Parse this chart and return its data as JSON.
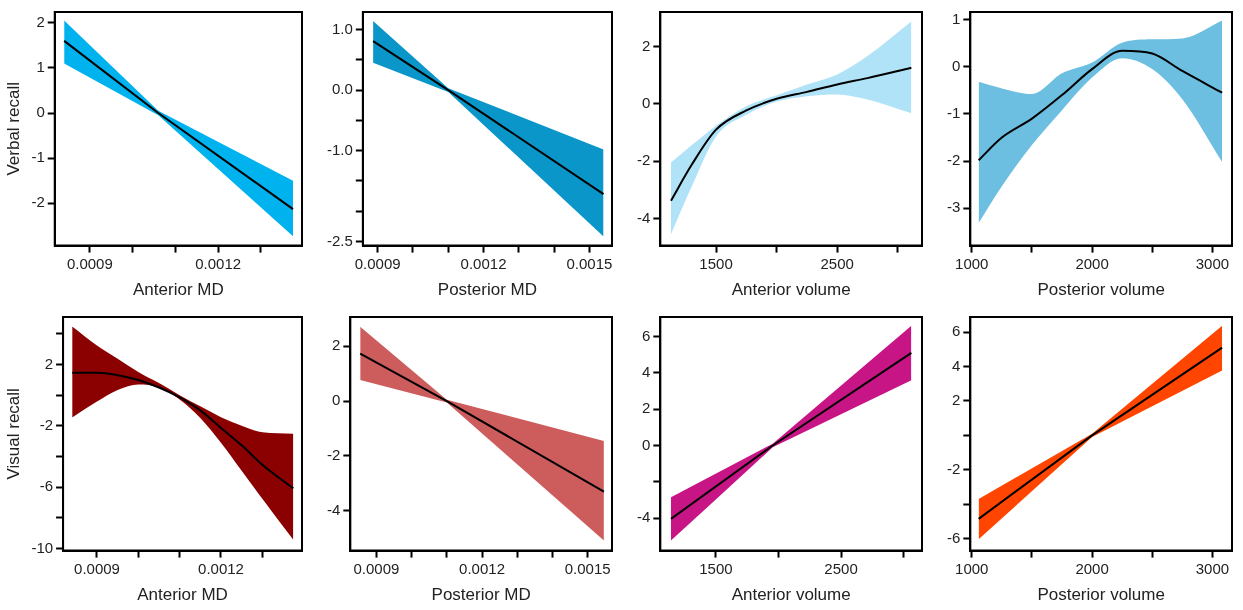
{
  "chart_data": [
    {
      "type": "line",
      "xlabel": "Anterior MD",
      "ylabel": "Verbal recall",
      "xlim": [
        0.000818,
        0.001396
      ],
      "xticks": [
        0.0009,
        {
          "value": 0.001,
          "label": null
        },
        {
          "value": 0.0011,
          "label": null
        },
        0.0012,
        {
          "value": 0.0013,
          "label": null
        }
      ],
      "ylim": [
        -2.94,
        2.24
      ],
      "yticks": [
        -2,
        -1,
        0,
        1,
        2
      ],
      "grid": false,
      "marker": "none",
      "x": [
        0.00084,
        0.00106,
        0.001375
      ],
      "series": [
        {
          "color": "#000000",
          "colors": [
            "#00b2ee",
            "#00b2ee",
            "#00b2ee"
          ],
          "values": [
            1.6,
            0,
            -2.13
          ],
          "lower": [
            1.1,
            -0.05,
            -2.73
          ],
          "upper": [
            2.05,
            0.05,
            -1.5
          ]
        }
      ]
    },
    {
      "type": "line",
      "xlabel": "Posterior MD",
      "xlim": [
        0.000858,
        0.001564
      ],
      "xticks": [
        0.0009,
        {
          "value": 0.001,
          "label": null
        },
        {
          "value": 0.0011,
          "label": null
        },
        0.0012,
        {
          "value": 0.0013,
          "label": null
        },
        {
          "value": 0.0014,
          "label": null
        },
        0.0015
      ],
      "ylim": [
        -2.57,
        1.29
      ],
      "yticks": [
        {
          "value": 1,
          "label": "1.0"
        },
        {
          "value": 0.5,
          "label": null
        },
        {
          "value": 0,
          "label": "0.0"
        },
        {
          "value": -0.5,
          "label": null
        },
        {
          "value": -1,
          "label": "-1.0"
        },
        {
          "value": -1.5,
          "label": null
        },
        {
          "value": -2,
          "label": null
        },
        -2.5
      ],
      "grid": false,
      "marker": "none",
      "x": [
        0.000887,
        0.0011,
        0.00154
      ],
      "series": [
        {
          "color": "#000000",
          "colors": [
            "#0a96c8",
            "#0a96c8",
            "#0a96c8"
          ],
          "values": [
            0.81,
            0,
            -1.72
          ],
          "lower": [
            0.45,
            -0.03,
            -2.42
          ],
          "upper": [
            1.14,
            0.03,
            -0.98
          ]
        }
      ]
    },
    {
      "type": "line",
      "xlabel": "Anterior volume",
      "xlim": [
        1040,
        3200
      ],
      "xticks": [
        1500,
        {
          "value": 2000,
          "label": null
        },
        2500,
        {
          "value": 3000,
          "label": null
        }
      ],
      "ylim": [
        -4.95,
        3.21
      ],
      "yticks": [
        -4,
        -2,
        0,
        2
      ],
      "grid": false,
      "marker": "none",
      "x": [
        1128,
        1300,
        1500,
        1750,
        2000,
        2250,
        2500,
        2750,
        3112
      ],
      "series": [
        {
          "color": "#000000",
          "colors": [
            "#b0e2f8",
            "#b0e2f8",
            "#b0e2f8",
            "#b0e2f8",
            "#b0e2f8",
            "#b0e2f8",
            "#b0e2f8",
            "#b0e2f8",
            "#b0e2f8"
          ],
          "values": [
            -3.38,
            -2.12,
            -0.9,
            -0.23,
            0.18,
            0.42,
            0.68,
            0.9,
            1.26
          ],
          "lower": [
            -4.55,
            -2.88,
            -1.14,
            -0.38,
            0.08,
            0.27,
            0.33,
            0.15,
            -0.33
          ],
          "upper": [
            -2.05,
            -1.44,
            -0.76,
            -0.08,
            0.3,
            0.68,
            1.03,
            1.67,
            2.88
          ]
        }
      ]
    },
    {
      "type": "line",
      "xlabel": "Posterior volume",
      "xlim": [
        988,
        3163
      ],
      "xticks": [
        1000,
        {
          "value": 1500,
          "label": null
        },
        2000,
        {
          "value": 2500,
          "label": null
        },
        3000
      ],
      "ylim": [
        -3.79,
        1.16
      ],
      "yticks": [
        -3,
        -2,
        -1,
        0,
        1
      ],
      "grid": false,
      "marker": "none",
      "x": [
        1057,
        1250,
        1500,
        1750,
        2000,
        2250,
        2500,
        2750,
        3081
      ],
      "series": [
        {
          "color": "#000000",
          "colors": [
            "#6cbfe0",
            "#6cbfe0",
            "#6cbfe0",
            "#6cbfe0",
            "#6cbfe0",
            "#6cbfe0",
            "#6cbfe0",
            "#6cbfe0",
            "#6cbfe0"
          ],
          "values": [
            -1.98,
            -1.5,
            -1.1,
            -0.6,
            -0.05,
            0.34,
            0.28,
            -0.09,
            -0.55
          ],
          "lower": [
            -3.31,
            -2.53,
            -1.66,
            -0.92,
            -0.23,
            0.18,
            -0.05,
            -0.69,
            -2.02
          ],
          "upper": [
            -0.32,
            -0.46,
            -0.58,
            -0.14,
            0.09,
            0.51,
            0.58,
            0.6,
            0.98
          ]
        }
      ]
    },
    {
      "type": "line",
      "xlabel": "Anterior MD",
      "ylabel": "Visual recall",
      "xlim": [
        0.000818,
        0.001396
      ],
      "xticks": [
        0.0009,
        {
          "value": 0.001,
          "label": null
        },
        {
          "value": 0.0011,
          "label": null
        },
        0.0012,
        {
          "value": 0.0013,
          "label": null
        }
      ],
      "ylim": [
        -10.14,
        5.1
      ],
      "yticks": [
        {
          "value": 4,
          "label": null
        },
        2,
        {
          "value": 0,
          "label": null
        },
        -2,
        {
          "value": -4,
          "label": null
        },
        -6,
        {
          "value": -8,
          "label": null
        },
        -10
      ],
      "grid": false,
      "marker": "none",
      "x": [
        0.00084,
        0.0009,
        0.00095,
        0.001,
        0.00105,
        0.0011,
        0.00115,
        0.0012,
        0.00125,
        0.0013,
        0.001375
      ],
      "series": [
        {
          "color": "#000000",
          "colors": [
            "#8b0000",
            "#8b0000",
            "#8b0000",
            "#8b0000",
            "#8b0000",
            "#8b0000",
            "#8b0000",
            "#8b0000",
            "#8b0000",
            "#8b0000",
            "#8b0000"
          ],
          "values": [
            1.46,
            1.46,
            1.3,
            0.99,
            0.5,
            -0.14,
            -0.99,
            -2.14,
            -3.27,
            -4.54,
            -6.08
          ],
          "lower": [
            -1.46,
            -0.42,
            0.34,
            0.7,
            0.51,
            -0.28,
            -1.49,
            -3.1,
            -4.93,
            -6.76,
            -9.44
          ],
          "upper": [
            4.48,
            3.24,
            2.37,
            1.52,
            0.79,
            0,
            -0.73,
            -1.44,
            -2,
            -2.42,
            -2.51
          ]
        }
      ]
    },
    {
      "type": "line",
      "xlabel": "Posterior MD",
      "xlim": [
        0.000826,
        0.001569
      ],
      "xticks": [
        0.0009,
        {
          "value": 0.001,
          "label": null
        },
        {
          "value": 0.0011,
          "label": null
        },
        0.0012,
        {
          "value": 0.0013,
          "label": null
        },
        {
          "value": 0.0014,
          "label": null
        },
        0.0015
      ],
      "ylim": [
        -5.46,
        3.07
      ],
      "yticks": [
        -4,
        -2,
        0,
        2
      ],
      "grid": false,
      "marker": "none",
      "x": [
        0.000854,
        0.0011,
        0.001546
      ],
      "series": [
        {
          "color": "#000000",
          "colors": [
            "#cd5c5c",
            "#cd5c5c",
            "#cd5c5c"
          ],
          "values": [
            1.73,
            0,
            -3.31
          ],
          "lower": [
            0.77,
            -0.05,
            -5.09
          ],
          "upper": [
            2.71,
            0.05,
            -1.46
          ]
        }
      ]
    },
    {
      "type": "line",
      "xlabel": "Anterior volume",
      "xlim": [
        1056,
        3147
      ],
      "xticks": [
        1500,
        {
          "value": 2000,
          "label": null
        },
        2500,
        {
          "value": 3000,
          "label": null
        }
      ],
      "ylim": [
        -5.79,
        7.08
      ],
      "yticks": [
        -4,
        {
          "value": -2,
          "label": null
        },
        0,
        2,
        4,
        6
      ],
      "grid": false,
      "marker": "none",
      "x": [
        1141,
        1954,
        3062
      ],
      "series": [
        {
          "color": "#000000",
          "colors": [
            "#c71585",
            "#c71585",
            "#c71585"
          ],
          "values": [
            -4.04,
            0,
            5.1
          ],
          "lower": [
            -5.24,
            -0.1,
            3.6
          ],
          "upper": [
            -2.85,
            0.1,
            6.6
          ]
        }
      ]
    },
    {
      "type": "line",
      "xlabel": "Posterior volume",
      "xlim": [
        988,
        3163
      ],
      "xticks": [
        1000,
        {
          "value": 1500,
          "label": null
        },
        2000,
        {
          "value": 2500,
          "label": null
        },
        3000
      ],
      "ylim": [
        -6.71,
        6.89
      ],
      "yticks": [
        -6,
        {
          "value": -4,
          "label": null
        },
        -2,
        {
          "value": 0,
          "label": null
        },
        2,
        4,
        6
      ],
      "grid": false,
      "marker": "none",
      "x": [
        1057,
        2000,
        3081
      ],
      "series": [
        {
          "color": "#000000",
          "colors": [
            "#ff4500",
            "#ff4500",
            "#ff4500"
          ],
          "values": [
            -4.86,
            0,
            5.11
          ],
          "lower": [
            -6.05,
            -0.1,
            3.77
          ],
          "upper": [
            -3.7,
            0.1,
            6.38
          ]
        }
      ]
    }
  ]
}
